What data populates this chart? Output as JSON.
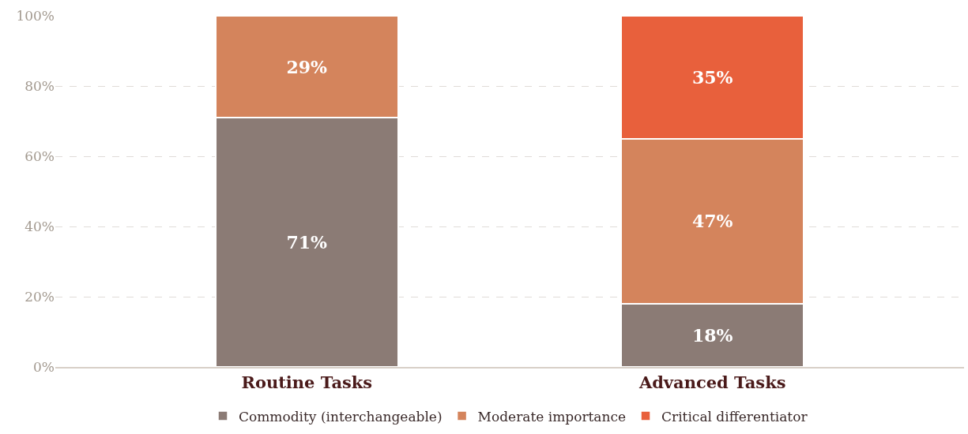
{
  "chart_data": {
    "type": "bar",
    "stacked": true,
    "categories": [
      "Routine Tasks",
      "Advanced Tasks"
    ],
    "series": [
      {
        "name": "Commodity (interchangeable)",
        "color": "#8b7b75",
        "values": [
          71,
          18
        ],
        "value_labels": [
          "71%",
          "18%"
        ]
      },
      {
        "name": "Moderate importance",
        "color": "#d4845c",
        "values": [
          29,
          47
        ],
        "value_labels": [
          "29%",
          "47%"
        ]
      },
      {
        "name": "Critical differentiator",
        "color": "#e8603c",
        "values": [
          null,
          35
        ],
        "value_labels": [
          null,
          "35%"
        ]
      }
    ],
    "ylim": [
      0,
      100
    ],
    "yticks": [
      {
        "value": 0,
        "label": "0%"
      },
      {
        "value": 20,
        "label": "20%"
      },
      {
        "value": 40,
        "label": "40%"
      },
      {
        "value": 60,
        "label": "60%"
      },
      {
        "value": 80,
        "label": "80%"
      },
      {
        "value": 100,
        "label": "100%"
      }
    ],
    "grid": "y",
    "legend": "bottom"
  }
}
